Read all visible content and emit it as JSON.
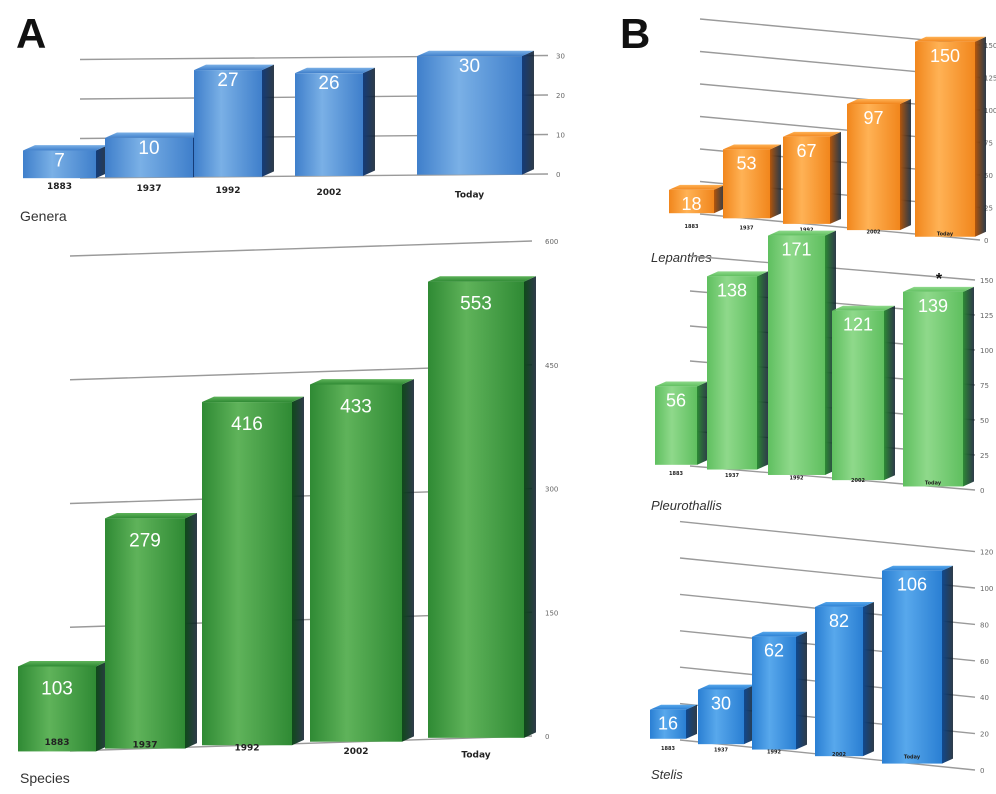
{
  "panels": {
    "a_label": "A",
    "b_label": "B"
  },
  "chart_data": [
    {
      "id": "genera",
      "type": "bar",
      "title": "Genera",
      "categories": [
        "1883",
        "1937",
        "1992",
        "2002",
        "Today"
      ],
      "values": [
        7,
        10,
        27,
        26,
        30
      ],
      "yticks": [
        0,
        10,
        20,
        30
      ],
      "ylim": [
        0,
        35
      ],
      "colors": {
        "light": "#7ab0e6",
        "mid": "#3f7fcb",
        "dark": "#143c7a"
      },
      "grid": true
    },
    {
      "id": "species",
      "type": "bar",
      "title": "Species",
      "categories": [
        "1883",
        "1937",
        "1992",
        "2002",
        "Today"
      ],
      "values": [
        103,
        279,
        416,
        433,
        553
      ],
      "yticks": [
        0,
        150,
        300,
        450,
        600
      ],
      "ylim": [
        0,
        600
      ],
      "colors": {
        "light": "#5fb35a",
        "mid": "#2f8a34",
        "dark": "#0f4a1a"
      },
      "grid": true
    },
    {
      "id": "lepanthes",
      "type": "bar",
      "title": "Lepanthes",
      "categories": [
        "1883",
        "1937",
        "1992",
        "2002",
        "Today"
      ],
      "values": [
        18,
        53,
        67,
        97,
        150
      ],
      "yticks": [
        0,
        25,
        50,
        75,
        100,
        125,
        150
      ],
      "ylim": [
        0,
        160
      ],
      "colors": {
        "light": "#ffb255",
        "mid": "#f1861c",
        "dark": "#b4560b"
      },
      "grid": true
    },
    {
      "id": "pleurothallis",
      "type": "bar",
      "title": "Pleurothallis",
      "categories": [
        "1883",
        "1937",
        "1992",
        "2002",
        "Today"
      ],
      "values": [
        56,
        138,
        171,
        121,
        139
      ],
      "annotation": {
        "category": "Today",
        "text": "*"
      },
      "yticks": [
        0,
        25,
        50,
        75,
        100,
        125,
        150
      ],
      "ylim": [
        0,
        170
      ],
      "colors": {
        "light": "#8fd98b",
        "mid": "#5fbf5f",
        "dark": "#2c8a34"
      },
      "grid": true
    },
    {
      "id": "stelis",
      "type": "bar",
      "title": "Stelis",
      "categories": [
        "1883",
        "1937",
        "1992",
        "2002",
        "Today"
      ],
      "values": [
        16,
        30,
        62,
        82,
        106
      ],
      "yticks": [
        0,
        20,
        40,
        60,
        80,
        100,
        120
      ],
      "ylim": [
        0,
        120
      ],
      "colors": {
        "light": "#58a8ec",
        "mid": "#2a7fd3",
        "dark": "#10498f"
      },
      "grid": true
    }
  ]
}
